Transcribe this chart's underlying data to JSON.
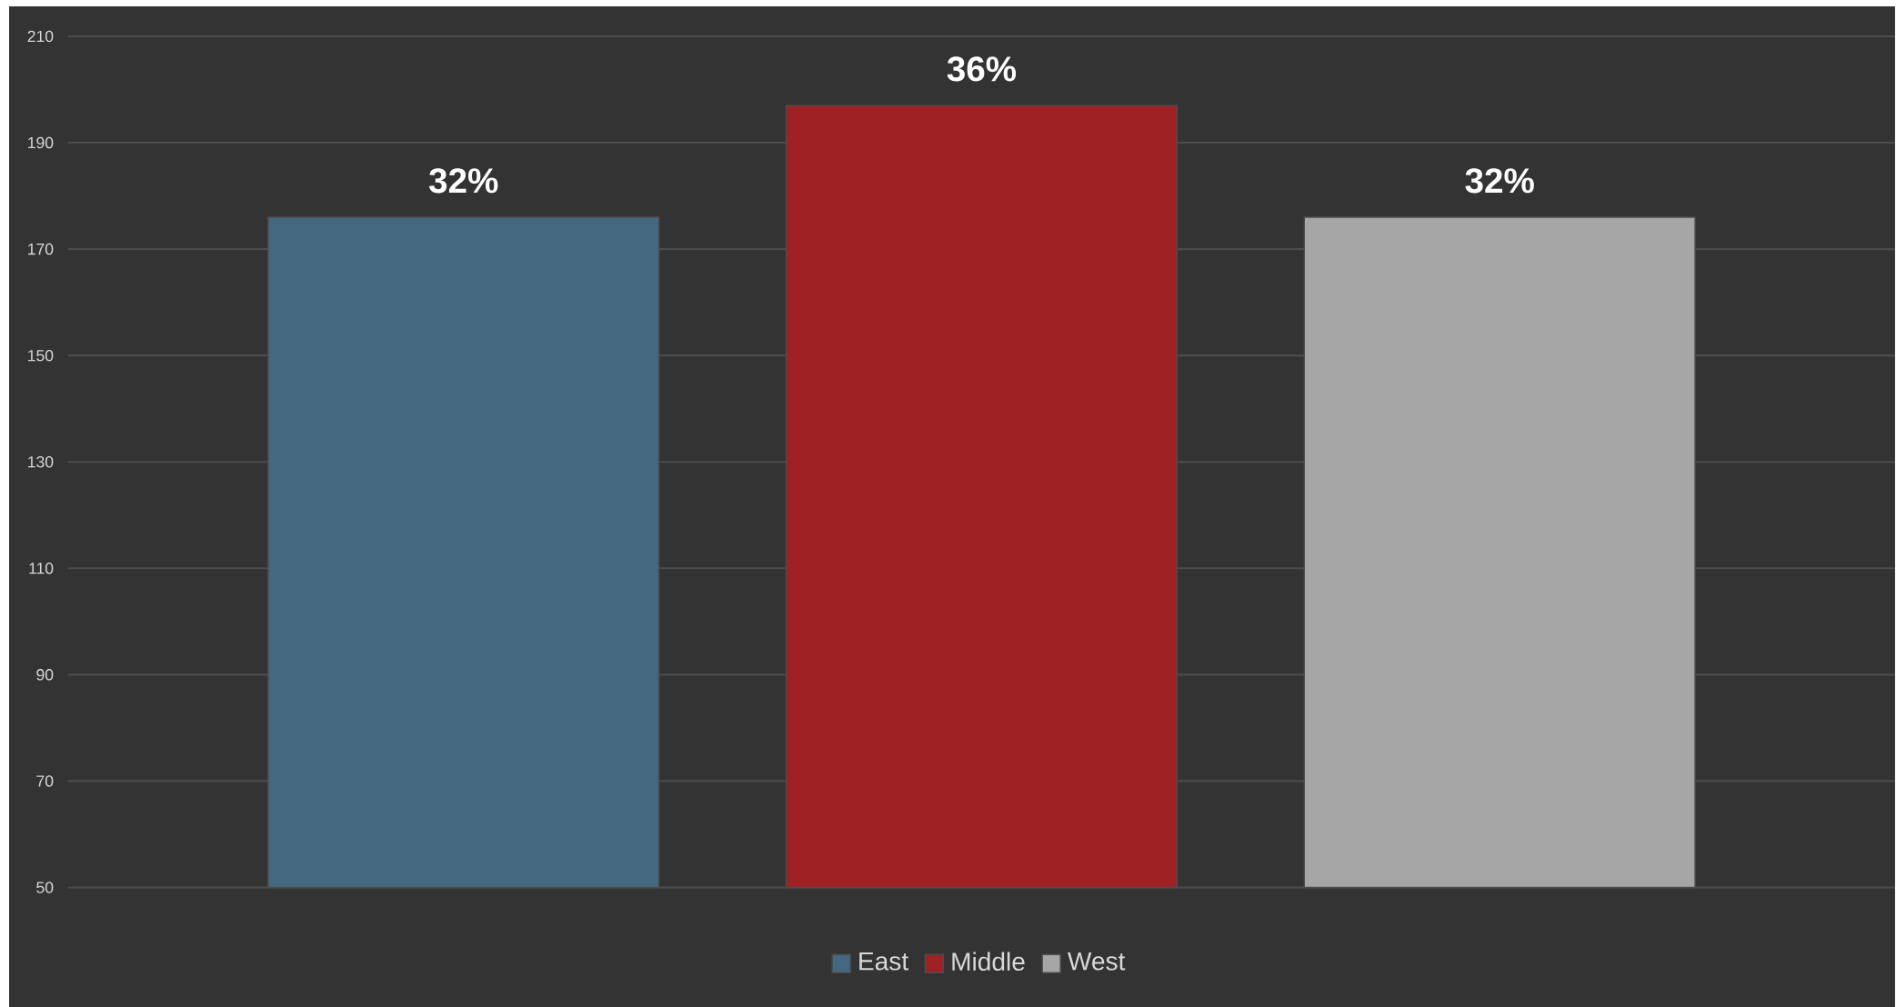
{
  "chart_data": {
    "type": "bar",
    "categories": [
      null
    ],
    "series": [
      {
        "name": "East",
        "color": "#44687f",
        "values": [
          176
        ]
      },
      {
        "name": "Middle",
        "color": "#9e2124",
        "values": [
          197
        ]
      },
      {
        "name": "West",
        "color": "#a6a6a6",
        "values": [
          176
        ]
      }
    ],
    "annotations": [
      {
        "text": "32%",
        "y": 176
      },
      {
        "text": "36%",
        "y": 197
      },
      {
        "text": "32%",
        "y": 176
      }
    ],
    "ylim": [
      50,
      210
    ],
    "yticks": [
      50,
      70,
      90,
      110,
      130,
      150,
      170,
      190,
      210
    ],
    "grid": "y",
    "legend": "bottom"
  }
}
